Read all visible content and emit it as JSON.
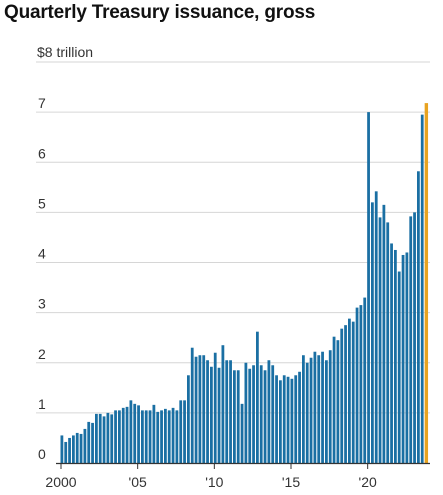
{
  "chart_data": {
    "type": "bar",
    "title": "Quarterly Treasury issuance, gross",
    "unit_label": "$8 trillion",
    "y_ticks": [
      0,
      1,
      2,
      3,
      4,
      5,
      6,
      7
    ],
    "y_tick_labels": [
      "0",
      "1",
      "2",
      "3",
      "4",
      "5",
      "6",
      "7"
    ],
    "ylim": [
      0,
      8
    ],
    "x_ticks": [
      2000,
      2005,
      2010,
      2015,
      2020
    ],
    "x_tick_labels": [
      "2000",
      "'05",
      "'10",
      "'15",
      "'20"
    ],
    "start_year": 2000,
    "quarters_per_year": 4,
    "grid": true,
    "colors": {
      "bar": "#1a6fa3",
      "highlight": "#e8a320",
      "grid": "#d6d6d6",
      "baseline": "#333333"
    },
    "values": [
      0.55,
      0.42,
      0.5,
      0.55,
      0.6,
      0.58,
      0.68,
      0.82,
      0.8,
      0.98,
      0.98,
      0.93,
      1.0,
      0.97,
      1.05,
      1.05,
      1.1,
      1.12,
      1.25,
      1.18,
      1.15,
      1.05,
      1.05,
      1.05,
      1.16,
      1.02,
      1.05,
      1.08,
      1.05,
      1.1,
      1.05,
      1.25,
      1.25,
      1.75,
      2.3,
      2.12,
      2.15,
      2.15,
      2.05,
      1.92,
      2.2,
      1.9,
      2.35,
      2.05,
      2.05,
      1.85,
      1.85,
      1.18,
      2.0,
      1.88,
      1.95,
      2.62,
      1.95,
      1.85,
      2.05,
      1.95,
      1.75,
      1.65,
      1.75,
      1.72,
      1.68,
      1.75,
      1.82,
      2.15,
      2.0,
      2.1,
      2.22,
      2.15,
      2.22,
      2.05,
      2.25,
      2.52,
      2.45,
      2.68,
      2.75,
      2.88,
      2.82,
      3.1,
      3.15,
      3.3,
      7.0,
      5.2,
      5.42,
      4.9,
      5.15,
      4.8,
      4.38,
      4.25,
      3.82,
      4.15,
      4.2,
      4.92,
      5.0,
      5.82,
      6.95,
      7.18
    ],
    "highlight_last": true
  }
}
